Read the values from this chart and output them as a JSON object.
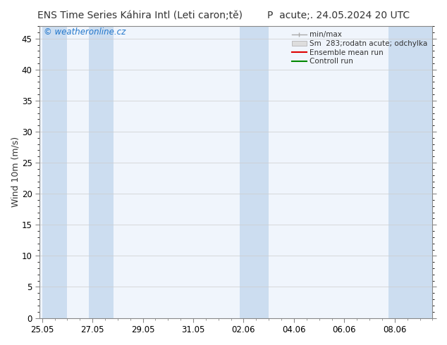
{
  "title": "ENS Time Series Káhira Intl (Leti caron;tě)        P  acute;. 24.05.2024 20 UTC",
  "ylabel": "Wind 10m (m/s)",
  "watermark": "© weatheronline.cz",
  "ylim": [
    0,
    47
  ],
  "yticks": [
    0,
    5,
    10,
    15,
    20,
    25,
    30,
    35,
    40,
    45
  ],
  "xtick_labels": [
    "25.05",
    "27.05",
    "29.05",
    "31.05",
    "02.06",
    "04.06",
    "06.06",
    "08.06"
  ],
  "xtick_positions": [
    0,
    2,
    4,
    6,
    8,
    10,
    12,
    14
  ],
  "total_days": 15.5,
  "xlim": [
    -0.1,
    15.5
  ],
  "bg_color": "#ffffff",
  "plot_bg_color": "#f0f5fc",
  "band_color": "#ccddf0",
  "band_specs": [
    [
      0.0,
      1.0
    ],
    [
      1.85,
      1.0
    ],
    [
      7.85,
      1.15
    ],
    [
      13.75,
      1.75
    ]
  ],
  "legend_entries": [
    {
      "label": "min/max",
      "color": "#aaaaaa",
      "lw": 1.0,
      "style": "solid",
      "type": "errorbar"
    },
    {
      "label": "Sm  283;rodatn acute; odchylka",
      "color": "#bbbbbb",
      "lw": 4,
      "style": "solid",
      "type": "band"
    },
    {
      "label": "Ensemble mean run",
      "color": "#dd0000",
      "lw": 1.5,
      "style": "solid",
      "type": "line"
    },
    {
      "label": "Controll run",
      "color": "#008800",
      "lw": 1.5,
      "style": "solid",
      "type": "line"
    }
  ],
  "title_fontsize": 10,
  "axis_fontsize": 9,
  "tick_fontsize": 8.5,
  "watermark_color": "#2277cc",
  "watermark_fontsize": 8.5,
  "grid_color": "#cccccc",
  "spine_color": "#888888"
}
